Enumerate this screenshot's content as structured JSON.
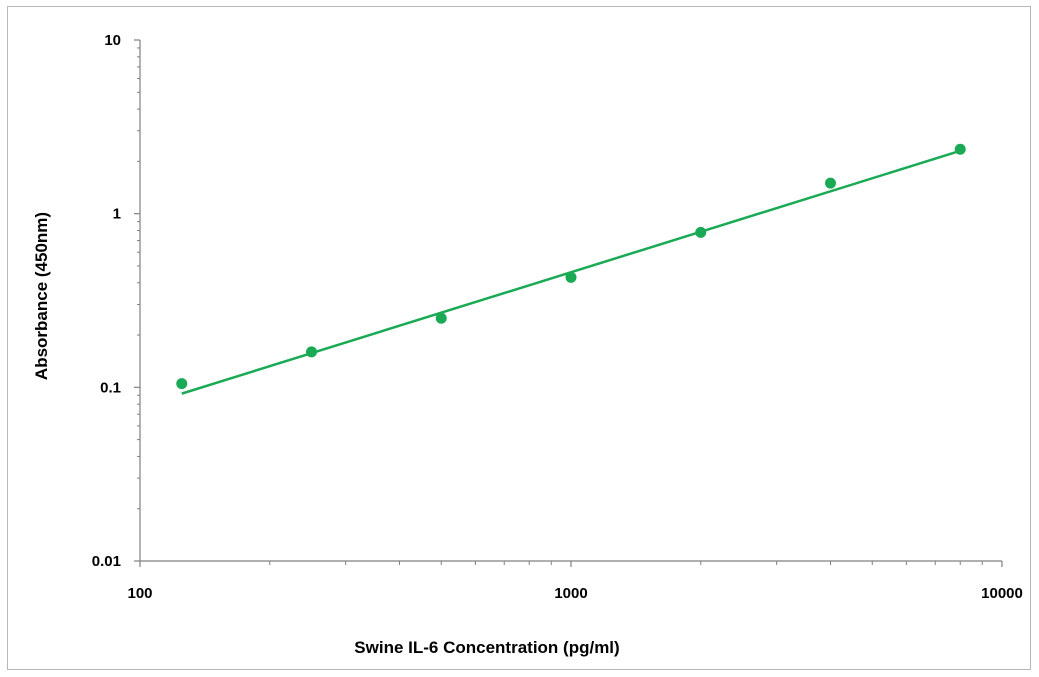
{
  "chart_data": {
    "type": "scatter",
    "title": "",
    "xlabel": "Swine IL-6 Concentration (pg/ml)",
    "ylabel": "Absorbance (450nm)",
    "x_scale": "log",
    "y_scale": "log",
    "xlim": [
      100,
      10000
    ],
    "ylim": [
      0.01,
      10
    ],
    "x_ticks": [
      "100",
      "1000",
      "10000"
    ],
    "y_ticks": [
      "10",
      "1",
      "0.1",
      "0.01"
    ],
    "grid": false,
    "legend": "none",
    "series": [
      {
        "x": [
          125,
          250,
          500,
          1000,
          2000,
          4000,
          8000
        ],
        "y": [
          0.105,
          0.16,
          0.25,
          0.43,
          0.78,
          1.5,
          2.35
        ]
      }
    ],
    "trendline": {
      "type": "power",
      "x": [
        125,
        8000
      ],
      "y": [
        0.092,
        2.3
      ]
    },
    "colors": {
      "marker": "#1aaa55",
      "trendline": "#1aaa55",
      "axis": "#808080"
    }
  }
}
